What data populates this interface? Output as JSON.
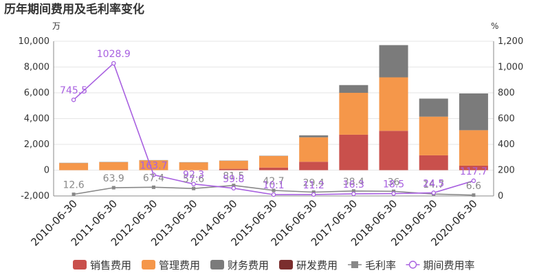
{
  "title": "历年期间费用及毛利率变化",
  "chart_data": {
    "type": "bar",
    "stacked": true,
    "categories": [
      "2010-06-30",
      "2011-06-30",
      "2012-06-30",
      "2013-06-30",
      "2014-06-30",
      "2015-06-30",
      "2016-06-30",
      "2017-06-30",
      "2018-06-30",
      "2019-06-30",
      "2020-06-30"
    ],
    "left_axis": {
      "unit": "万",
      "min": -2000,
      "max": 10000,
      "ticks": [
        "-2,000",
        "0",
        "2,000",
        "4,000",
        "6,000",
        "8,000",
        "10,000"
      ]
    },
    "right_axis": {
      "unit": "%",
      "min": 0,
      "max": 1200,
      "ticks": [
        "0",
        "200",
        "400",
        "600",
        "800",
        "1,000",
        "1,200"
      ]
    },
    "series": [
      {
        "name": "销售费用",
        "color": "#c9504c",
        "values": [
          0,
          0,
          0,
          0,
          100,
          200,
          650,
          2750,
          3050,
          1150,
          350
        ]
      },
      {
        "name": "管理费用",
        "color": "#f5974a",
        "values": [
          550,
          620,
          760,
          600,
          620,
          900,
          1900,
          3250,
          4150,
          3000,
          2750
        ]
      },
      {
        "name": "财务费用",
        "color": "#7b7b7b",
        "values": [
          20,
          20,
          20,
          20,
          20,
          20,
          150,
          600,
          2500,
          1400,
          2850
        ]
      },
      {
        "name": "研发费用",
        "color": "#7b2e2e",
        "values": [
          0,
          0,
          0,
          0,
          0,
          0,
          0,
          0,
          0,
          0,
          0
        ]
      }
    ],
    "lines": [
      {
        "name": "毛利率",
        "axis": "right",
        "color": "#888888",
        "values": [
          12.6,
          63.9,
          67.4,
          57.6,
          81.5,
          42.7,
          29.4,
          38.4,
          36,
          14.7,
          6.6
        ],
        "labels": [
          "12.6",
          "63.9",
          "67.4",
          "57.6",
          "81.5",
          "42.7",
          "29.4",
          "38.4",
          "36",
          "14.7",
          "6.6"
        ]
      },
      {
        "name": "期间费用率",
        "axis": "right",
        "color": "#a860e0",
        "values": [
          745.5,
          1028.9,
          163.7,
          92.3,
          59.8,
          10.1,
          11.2,
          16.3,
          18.5,
          24.5,
          117.7
        ],
        "labels": [
          "745.5",
          "1028.9",
          "163.7",
          "92.3",
          "59.8",
          "10.1",
          "11.2",
          "16.3",
          "18.5",
          "24.5",
          "117.7"
        ]
      }
    ],
    "legend_position": "bottom"
  }
}
